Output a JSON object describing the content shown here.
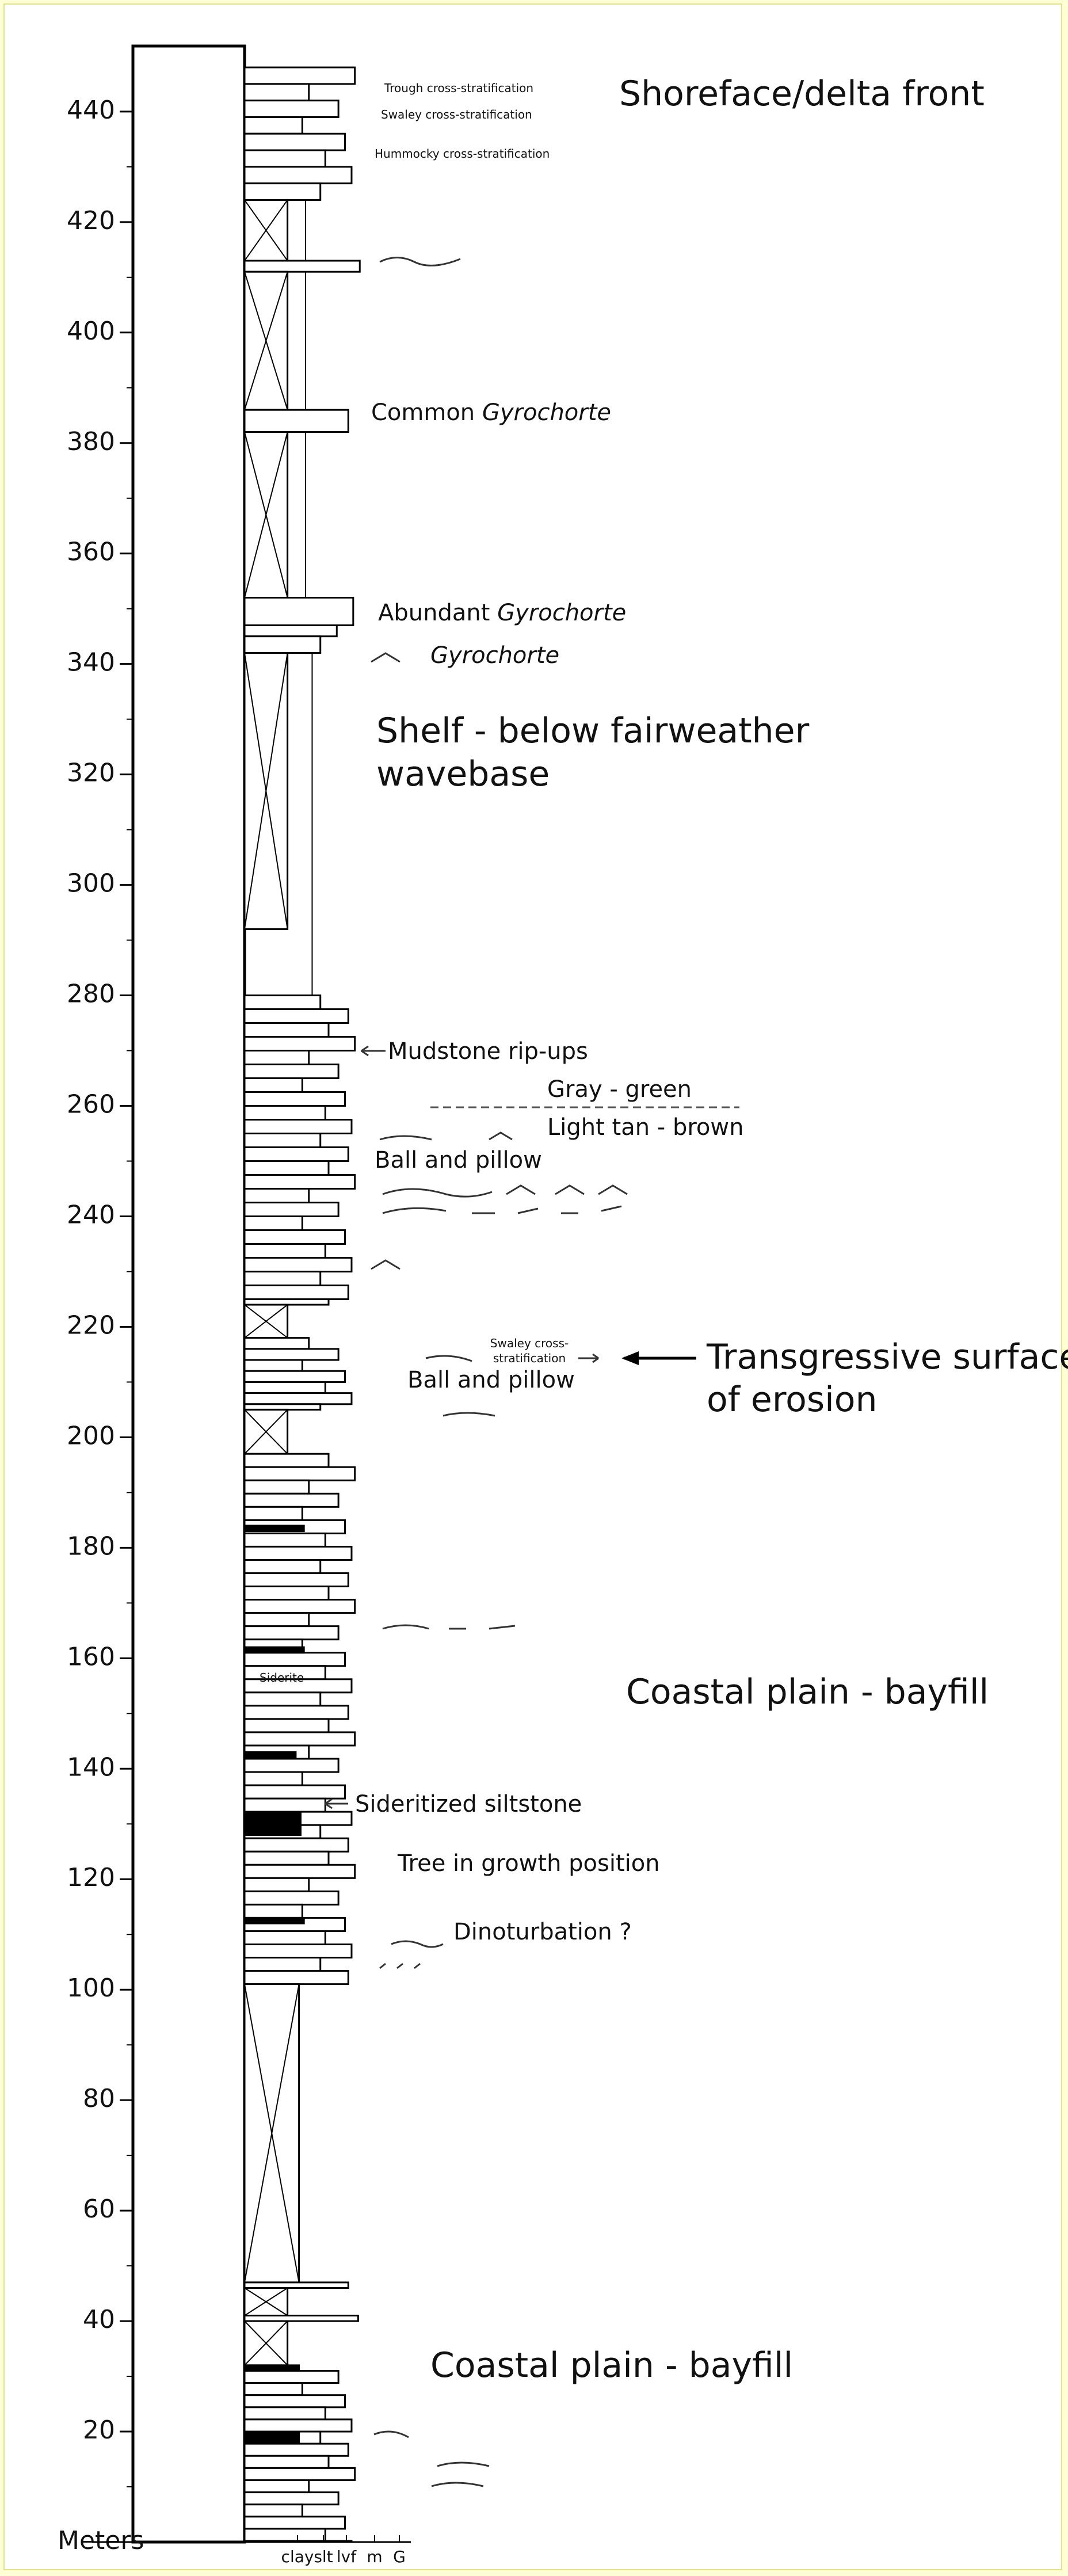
{
  "depth_axis": {
    "label": "Meters",
    "ticks": [
      20,
      40,
      60,
      80,
      100,
      120,
      140,
      160,
      180,
      200,
      220,
      240,
      260,
      280,
      300,
      320,
      340,
      360,
      380,
      400,
      420,
      440
    ]
  },
  "grain_size_scale": [
    "clay",
    "slt",
    "lvf",
    "m",
    "G"
  ],
  "facies_labels": [
    {
      "lines": [
        "Shoreface/delta front"
      ]
    },
    {
      "lines": [
        "Shelf - below fairweather",
        "wavebase"
      ]
    },
    {
      "lines": [
        "Coastal plain - bayfill"
      ]
    },
    {
      "lines": [
        "Coastal plain - bayfill"
      ]
    }
  ],
  "surface_label": {
    "lines": [
      "Transgressive surface",
      "of erosion"
    ]
  },
  "annotations": {
    "trough": "Trough cross-stratification",
    "swaley": "Swaley cross-stratification",
    "hummocky": "Hummocky cross-stratification",
    "common_gyrochorte": {
      "text": "Common",
      "italic": "Gyrochorte"
    },
    "abundant_gyrochorte": {
      "text": "Abundant",
      "italic": "Gyrochorte"
    },
    "gyrochorte": "Gyrochorte",
    "mudstone_ripups": "Mudstone rip-ups",
    "gray_green": "Gray - green",
    "light_tan": "Light tan - brown",
    "ball_pillow_upper": "Ball and pillow",
    "swaley_small": [
      "Swaley cross-",
      "stratification"
    ],
    "ball_pillow_lower": "Ball and pillow",
    "siderite": "Siderite",
    "sideritized": "Sideritized siltstone",
    "tree": "Tree in growth position",
    "dinoturbation": "Dinoturbation ?"
  }
}
